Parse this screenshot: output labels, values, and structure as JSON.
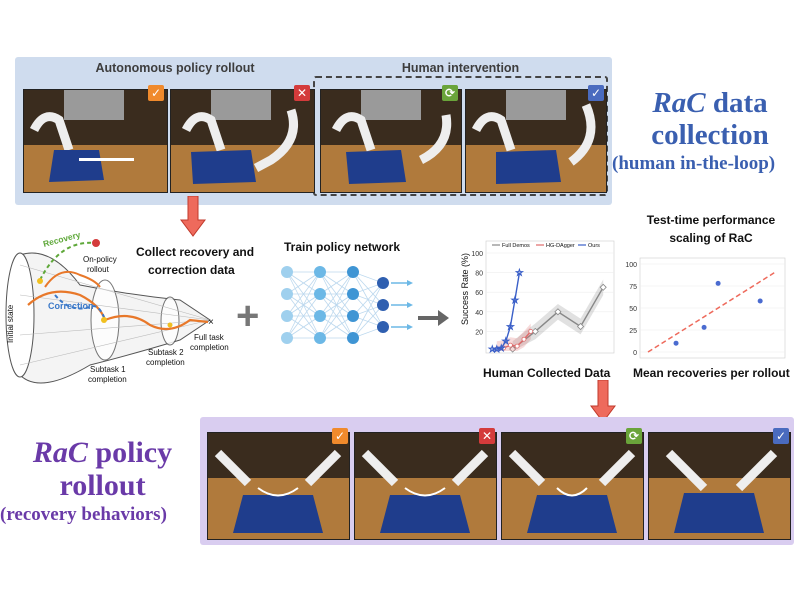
{
  "top": {
    "autonomous_label": "Autonomous policy rollout",
    "human_label": "Human intervention",
    "title_ra": "RaC",
    "title_rest": " data",
    "title_line2": "collection",
    "title_line3": "(human in-the-loop)"
  },
  "middle": {
    "collect_label_1": "Collect recovery and",
    "collect_label_2": "correction data",
    "train_label": "Train policy network",
    "plus": "+",
    "scaling_title_1": "Test-time performance",
    "scaling_title_2": "scaling of RaC",
    "human_data_label": "Human Collected Data",
    "mean_recoveries_label": "Mean recoveries per rollout"
  },
  "tube": {
    "recovery": "Recovery",
    "on_policy_1": "On-policy",
    "on_policy_2": "rollout",
    "correction": "Correction",
    "initial_state": "Initial state",
    "subtask1_1": "Subtask 1",
    "subtask1_2": "completion",
    "subtask2_1": "Subtask 2",
    "subtask2_2": "completion",
    "full_1": "Full task",
    "full_2": "completion"
  },
  "bottom": {
    "title_ra": "RaC",
    "title_rest": " policy",
    "title_line2": "rollout",
    "title_line3": "(recovery behaviors)"
  },
  "badges": {
    "check": "✓",
    "x": "✕",
    "loop": "⟳",
    "tick": "✓"
  },
  "colors": {
    "top_panel": "#cfdcee",
    "bottom_panel": "#d9cdf0",
    "rac_blue": "#3a5fb0",
    "rac_purple": "#6a3aa8",
    "recovery_green": "#5fa83a",
    "correction_blue": "#3a78c8",
    "orange_path": "#e8782a",
    "arrow_red": "#ee6a5c"
  },
  "chart_data": [
    {
      "type": "line",
      "ylabel": "Success Rate (%)",
      "xlabel": "Human Collected Data",
      "ylim": [
        0,
        100
      ],
      "yticks": [
        20,
        40,
        60,
        80,
        100
      ],
      "legend_position": "top",
      "series": [
        {
          "name": "Full Demos",
          "color": "#888888",
          "marker": "diamond",
          "x": [
            1,
            2,
            3,
            4,
            5
          ],
          "y": [
            2,
            20,
            40,
            25,
            65
          ]
        },
        {
          "name": "HG-DAgger",
          "color": "#e06a6a",
          "marker": "circle",
          "x": [
            0.3,
            0.6,
            0.9,
            1.2,
            1.5,
            1.8
          ],
          "y": [
            2,
            3,
            6,
            5,
            12,
            20
          ]
        },
        {
          "name": "Ours",
          "color": "#3a5fc8",
          "marker": "star",
          "x": [
            0.1,
            0.3,
            0.5,
            0.7,
            0.9,
            1.1,
            1.3
          ],
          "y": [
            2,
            2,
            3,
            10,
            25,
            52,
            80
          ]
        }
      ]
    },
    {
      "type": "scatter",
      "xlabel": "Mean recoveries per rollout",
      "ylim": [
        0,
        100
      ],
      "yticks": [
        0,
        25,
        50,
        75,
        100
      ],
      "points": [
        {
          "x": 1,
          "y": 10
        },
        {
          "x": 2,
          "y": 28
        },
        {
          "x": 2.5,
          "y": 78
        },
        {
          "x": 4,
          "y": 58
        }
      ],
      "trendline": {
        "color": "#ee6a5c",
        "style": "dashed",
        "from": [
          0,
          0
        ],
        "to": [
          4.5,
          90
        ]
      }
    }
  ]
}
